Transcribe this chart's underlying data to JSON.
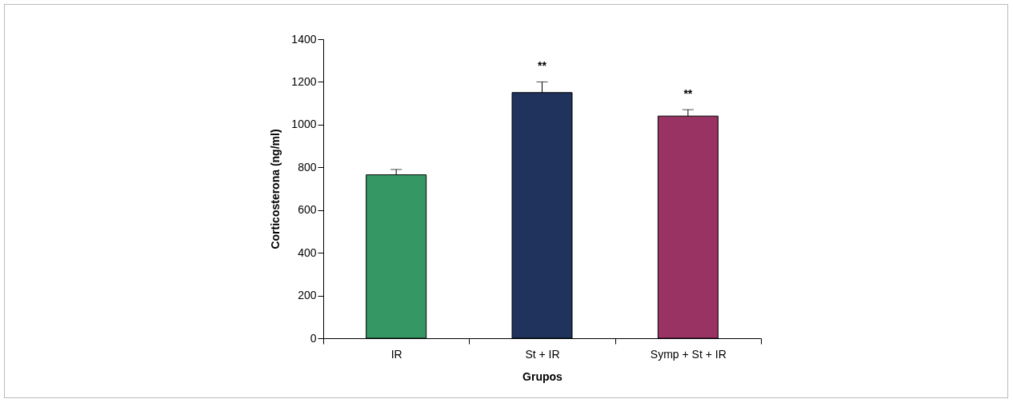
{
  "chart_data": {
    "type": "bar",
    "xlabel": "Grupos",
    "ylabel": "Corticosterona (ng/ml)",
    "categories": [
      "IR",
      "St + IR",
      "Symp + St + IR"
    ],
    "values": [
      765,
      1150,
      1040
    ],
    "colors": [
      "#359764",
      "#1f335c",
      "#983364"
    ],
    "errors": [
      25,
      50,
      30
    ],
    "ylim": [
      0,
      1400
    ],
    "yticks": [
      0,
      200,
      400,
      600,
      800,
      1000,
      1200,
      1400
    ],
    "grid": false,
    "annotations": [
      {
        "text": "**",
        "x": "St + IR",
        "y": 1199
      },
      {
        "text": "**",
        "x": "Symp + St + IR",
        "y": 1068
      }
    ]
  }
}
